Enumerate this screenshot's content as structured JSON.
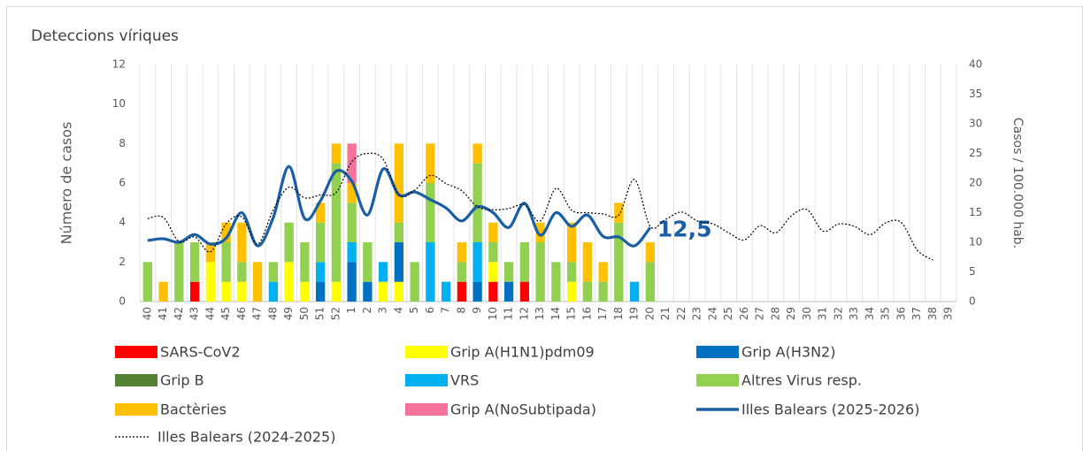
{
  "chart_data": {
    "type": "bar",
    "title": "Deteccions víriques",
    "ylabel": "Número de casos",
    "y2label": "Casos / 100.000 hab.",
    "categories": [
      "40",
      "41",
      "42",
      "43",
      "44",
      "45",
      "46",
      "47",
      "48",
      "49",
      "50",
      "51",
      "52",
      "1",
      "2",
      "3",
      "4",
      "5",
      "6",
      "7",
      "8",
      "9",
      "10",
      "11",
      "12",
      "13",
      "14",
      "15",
      "16",
      "17",
      "18",
      "19",
      "20",
      "21",
      "22",
      "23",
      "24",
      "25",
      "26",
      "27",
      "28",
      "29",
      "30",
      "31",
      "32",
      "33",
      "34",
      "35",
      "36",
      "37",
      "38",
      "39"
    ],
    "ylim": [
      0,
      12
    ],
    "yticks": [
      0,
      2,
      4,
      6,
      8,
      10,
      12
    ],
    "y2lim": [
      0,
      40
    ],
    "y2ticks": [
      0,
      5,
      10,
      15,
      20,
      25,
      30,
      35,
      40
    ],
    "stacked": true,
    "series": [
      {
        "name": "SARS-CoV2",
        "color": "#ff0000",
        "values": [
          0,
          0,
          0,
          1,
          0,
          0,
          0,
          0,
          0,
          0,
          0,
          0,
          0,
          0,
          0,
          0,
          0,
          0,
          0,
          0,
          1,
          0,
          1,
          0,
          1,
          0,
          0,
          0,
          0,
          0,
          0,
          0,
          0,
          null,
          null,
          null,
          null,
          null,
          null,
          null,
          null,
          null,
          null,
          null,
          null,
          null,
          null,
          null,
          null,
          null,
          null,
          null
        ]
      },
      {
        "name": "Grip A(H1N1)pdm09",
        "color": "#ffff00",
        "values": [
          0,
          0,
          0,
          0,
          2,
          1,
          1,
          0,
          0,
          2,
          1,
          0,
          1,
          0,
          0,
          1,
          1,
          0,
          0,
          0,
          0,
          0,
          1,
          0,
          0,
          0,
          0,
          1,
          0,
          0,
          0,
          0,
          0,
          null,
          null,
          null,
          null,
          null,
          null,
          null,
          null,
          null,
          null,
          null,
          null,
          null,
          null,
          null,
          null,
          null,
          null,
          null
        ]
      },
      {
        "name": "Grip A(H3N2)",
        "color": "#0070c0",
        "values": [
          0,
          0,
          0,
          0,
          0,
          0,
          0,
          0,
          0,
          0,
          0,
          1,
          0,
          2,
          1,
          0,
          2,
          0,
          0,
          0,
          0,
          1,
          0,
          1,
          0,
          0,
          0,
          0,
          0,
          0,
          0,
          0,
          0,
          null,
          null,
          null,
          null,
          null,
          null,
          null,
          null,
          null,
          null,
          null,
          null,
          null,
          null,
          null,
          null,
          null,
          null,
          null
        ]
      },
      {
        "name": "Grip B",
        "color": "#548235",
        "values": [
          0,
          0,
          0,
          0,
          0,
          0,
          0,
          0,
          0,
          0,
          0,
          0,
          0,
          0,
          0,
          0,
          0,
          0,
          0,
          0,
          0,
          0,
          0,
          0,
          0,
          0,
          0,
          0,
          0,
          0,
          0,
          0,
          0,
          null,
          null,
          null,
          null,
          null,
          null,
          null,
          null,
          null,
          null,
          null,
          null,
          null,
          null,
          null,
          null,
          null,
          null,
          null
        ]
      },
      {
        "name": "VRS",
        "color": "#00b0f0",
        "values": [
          0,
          0,
          0,
          0,
          0,
          0,
          0,
          0,
          1,
          0,
          0,
          1,
          0,
          1,
          0,
          1,
          0,
          0,
          3,
          1,
          0,
          2,
          0,
          0,
          0,
          0,
          0,
          0,
          0,
          0,
          0,
          1,
          0,
          null,
          null,
          null,
          null,
          null,
          null,
          null,
          null,
          null,
          null,
          null,
          null,
          null,
          null,
          null,
          null,
          null,
          null,
          null
        ]
      },
      {
        "name": "Altres Virus resp.",
        "color": "#92d050",
        "values": [
          2,
          0,
          3,
          2,
          0,
          2,
          1,
          0,
          1,
          2,
          2,
          2,
          6,
          2,
          2,
          0,
          1,
          2,
          3,
          0,
          1,
          4,
          1,
          1,
          2,
          3,
          2,
          1,
          1,
          1,
          4,
          0,
          2,
          null,
          null,
          null,
          null,
          null,
          null,
          null,
          null,
          null,
          null,
          null,
          null,
          null,
          null,
          null,
          null,
          null,
          null,
          null
        ]
      },
      {
        "name": "Bactèries",
        "color": "#ffc000",
        "values": [
          0,
          1,
          0,
          0,
          1,
          1,
          2,
          2,
          0,
          0,
          0,
          1,
          1,
          1,
          0,
          0,
          4,
          0,
          2,
          0,
          1,
          1,
          1,
          0,
          0,
          1,
          0,
          2,
          2,
          1,
          1,
          0,
          1,
          null,
          null,
          null,
          null,
          null,
          null,
          null,
          null,
          null,
          null,
          null,
          null,
          null,
          null,
          null,
          null,
          null,
          null,
          null
        ]
      },
      {
        "name": "Grip A(NoSubtipada)",
        "color": "#f4739a",
        "values": [
          0,
          0,
          0,
          0,
          0,
          0,
          0,
          0,
          0,
          0,
          0,
          0,
          0,
          2,
          0,
          0,
          0,
          0,
          0,
          0,
          0,
          0,
          0,
          0,
          0,
          0,
          0,
          0,
          0,
          0,
          0,
          0,
          0,
          null,
          null,
          null,
          null,
          null,
          null,
          null,
          null,
          null,
          null,
          null,
          null,
          null,
          null,
          null,
          null,
          null,
          null,
          null
        ]
      },
      {
        "name": "Illes Balears (2025-2026)",
        "type": "line",
        "axis": "y2",
        "color": "#1a5ea6",
        "values": [
          10.3,
          10.6,
          10,
          11.3,
          9.7,
          10.7,
          15,
          9.4,
          14.2,
          22.8,
          14,
          17,
          22,
          20.3,
          14.6,
          22.4,
          18,
          18.5,
          17.2,
          15.8,
          13.6,
          16,
          15,
          12.5,
          16.6,
          11.2,
          15,
          12.7,
          14.6,
          11,
          10.9,
          9.4,
          12.5,
          null,
          null,
          null,
          null,
          null,
          null,
          null,
          null,
          null,
          null,
          null,
          null,
          null,
          null,
          null,
          null,
          null,
          null,
          null
        ],
        "value_labels": [
          null,
          null,
          null,
          null,
          null,
          null,
          null,
          null,
          null,
          null,
          null,
          null,
          null,
          null,
          null,
          null,
          null,
          null,
          null,
          null,
          null,
          null,
          null,
          null,
          null,
          null,
          null,
          null,
          null,
          null,
          null,
          null,
          "12,5",
          null,
          null,
          null,
          null,
          null,
          null,
          null,
          null,
          null,
          null,
          null,
          null,
          null,
          null,
          null,
          null,
          null,
          null,
          null
        ]
      },
      {
        "name": "Illes Balears (2024-2025)",
        "type": "line",
        "axis": "y2",
        "dashed": true,
        "color": "#000000",
        "values": [
          14,
          14.2,
          10.1,
          10.9,
          8.4,
          13.1,
          14.3,
          9.7,
          15.5,
          19.3,
          17.5,
          18,
          18.4,
          23.6,
          25,
          24,
          18,
          18.8,
          21.3,
          19.9,
          18.7,
          16,
          15.5,
          15.7,
          16.3,
          13.6,
          19.1,
          15.4,
          15,
          14.8,
          14.6,
          20.6,
          12.7,
          13.9,
          15.1,
          13.6,
          13.1,
          11.6,
          10.4,
          12.8,
          11.6,
          14.5,
          15.5,
          11.9,
          13.1,
          12.7,
          11.3,
          13.3,
          13.3,
          8.7,
          7,
          null
        ]
      }
    ]
  }
}
